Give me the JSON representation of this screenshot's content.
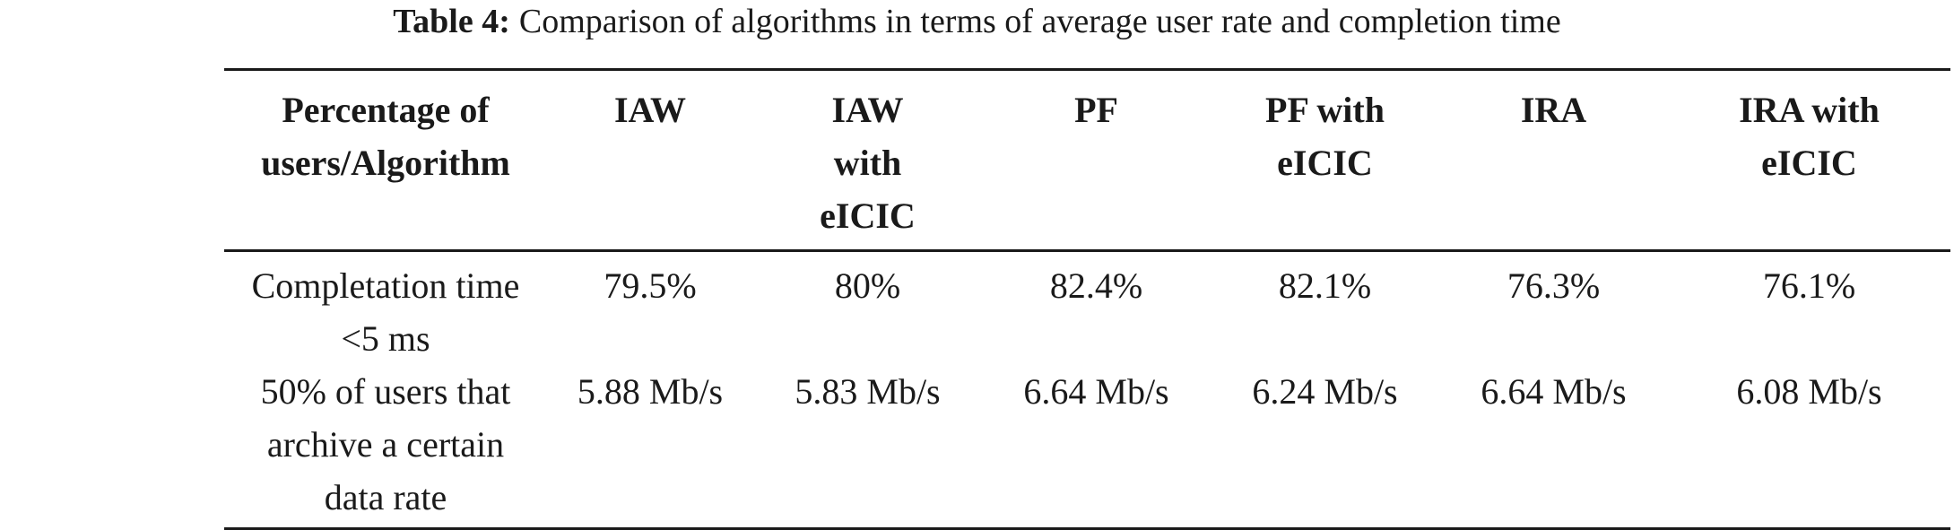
{
  "caption": {
    "label": "Table 4:",
    "text": "Comparison of algorithms in terms of average user rate and completion time"
  },
  "table": {
    "headers": [
      [
        "Percentage of",
        "users/Algorithm"
      ],
      [
        "IAW"
      ],
      [
        "IAW",
        "with",
        "eICIC"
      ],
      [
        "PF"
      ],
      [
        "PF with",
        "eICIC"
      ],
      [
        "IRA"
      ],
      [
        "IRA with",
        "eICIC"
      ]
    ],
    "rows": [
      {
        "label": [
          "Completation time",
          "<5 ms"
        ],
        "cells": [
          "79.5%",
          "80%",
          "82.4%",
          "82.1%",
          "76.3%",
          "76.1%"
        ]
      },
      {
        "label": [
          "50% of users that",
          "archive a certain",
          "data rate"
        ],
        "cells": [
          "5.88 Mb/s",
          "5.83 Mb/s",
          "6.64 Mb/s",
          "6.24 Mb/s",
          "6.64 Mb/s",
          "6.08 Mb/s"
        ]
      }
    ]
  }
}
